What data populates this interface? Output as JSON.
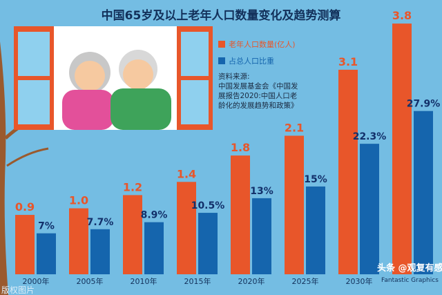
{
  "chart_data": {
    "type": "bar",
    "title": "中国65岁及以上老年人口数量变化及趋势测算",
    "categories": [
      "2000年",
      "2005年",
      "2010年",
      "2015年",
      "2020年",
      "2025年",
      "2030年",
      ""
    ],
    "series": [
      {
        "name": "老年人口数量(亿人)",
        "color": "#e8562a",
        "values": [
          0.9,
          1.0,
          1.2,
          1.4,
          1.8,
          2.1,
          3.1,
          3.8
        ],
        "labels": [
          "0.9",
          "1.0",
          "1.2",
          "1.4",
          "1.8",
          "2.1",
          "3.1",
          "3.8"
        ]
      },
      {
        "name": "占总人口比重",
        "color": "#1565ad",
        "values": [
          7,
          7.7,
          8.9,
          10.5,
          13,
          15,
          22.3,
          27.9
        ],
        "labels": [
          "7%",
          "7.7%",
          "8.9%",
          "10.5%",
          "13%",
          "15%",
          "22.3%",
          "27.9%"
        ]
      }
    ],
    "source": [
      "资料来源:",
      "中国发展基金会《中国发",
      "展报告2020:中国人口老",
      "龄化的发展趋势和政策》"
    ]
  },
  "watermarks": {
    "left": "版权图片",
    "toutiao": "头条 @观复有感",
    "brand": "Fantastic Graphics"
  }
}
